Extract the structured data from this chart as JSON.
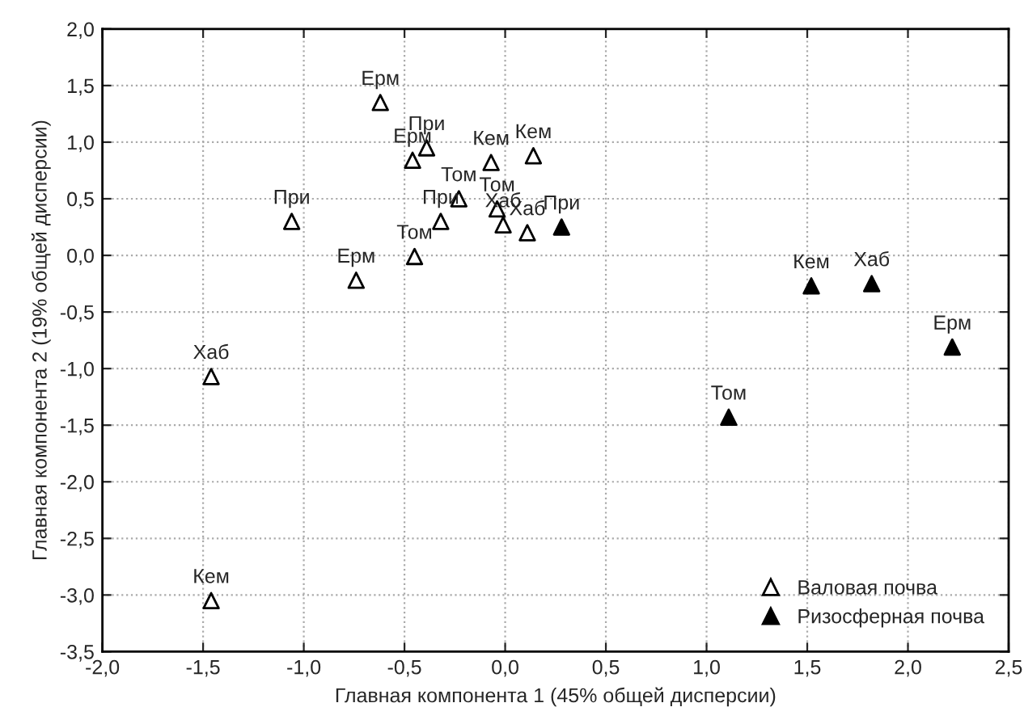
{
  "chart_data": {
    "type": "scatter",
    "xlabel": "Главная компонента 1 (45% общей дисперсии)",
    "ylabel": "Главная компонента 2 (19% общей дисперсии)",
    "xlim": [
      -2.0,
      2.5
    ],
    "ylim": [
      -3.5,
      2.0
    ],
    "xticks": [
      {
        "value": -2.0,
        "label": "-2,0"
      },
      {
        "value": -1.5,
        "label": "-1,5"
      },
      {
        "value": -1.0,
        "label": "-1,0"
      },
      {
        "value": -0.5,
        "label": "-0,5"
      },
      {
        "value": 0.0,
        "label": "0,0"
      },
      {
        "value": 0.5,
        "label": "0,5"
      },
      {
        "value": 1.0,
        "label": "1,0"
      },
      {
        "value": 1.5,
        "label": "1,5"
      },
      {
        "value": 2.0,
        "label": "2,0"
      },
      {
        "value": 2.5,
        "label": "2,5"
      }
    ],
    "yticks": [
      {
        "value": -3.5,
        "label": "-3,5"
      },
      {
        "value": -3.0,
        "label": "-3,0"
      },
      {
        "value": -2.5,
        "label": "-2,5"
      },
      {
        "value": -2.0,
        "label": "-2,0"
      },
      {
        "value": -1.5,
        "label": "-1,5"
      },
      {
        "value": -1.0,
        "label": "-1,0"
      },
      {
        "value": -0.5,
        "label": "-0,5"
      },
      {
        "value": 0.0,
        "label": "0,0"
      },
      {
        "value": 0.5,
        "label": "0,5"
      },
      {
        "value": 1.0,
        "label": "1,0"
      },
      {
        "value": 1.5,
        "label": "1,5"
      },
      {
        "value": 2.0,
        "label": "2,0"
      }
    ],
    "grid": true,
    "legend": "bottom right",
    "marker": "triangle",
    "series": [
      {
        "name": "Валовая почва",
        "color": "#ffffff",
        "x": [
          -0.62,
          -0.39,
          -0.46,
          -0.07,
          0.14,
          -0.23,
          -0.04,
          -0.01,
          0.11,
          -0.32,
          -1.06,
          -0.45,
          -0.74,
          -1.46,
          -1.46
        ],
        "values": [
          1.35,
          0.95,
          0.84,
          0.82,
          0.88,
          0.5,
          0.41,
          0.27,
          0.2,
          0.3,
          0.3,
          -0.01,
          -0.22,
          -1.07,
          -3.05
        ]
      },
      {
        "name": "Ризосферная почва",
        "color": "#000000",
        "x": [
          0.28,
          1.52,
          1.82,
          2.22,
          1.11
        ],
        "values": [
          0.25,
          -0.27,
          -0.25,
          -0.81,
          -1.43
        ]
      }
    ],
    "annotations": [
      {
        "text": "Ерм",
        "x": -0.62,
        "y": 1.35
      },
      {
        "text": "При",
        "x": -0.39,
        "y": 0.95
      },
      {
        "text": "Ерм",
        "x": -0.46,
        "y": 0.84
      },
      {
        "text": "Кем",
        "x": -0.07,
        "y": 0.82
      },
      {
        "text": "Кем",
        "x": 0.14,
        "y": 0.88
      },
      {
        "text": "Том",
        "x": -0.23,
        "y": 0.5
      },
      {
        "text": "Том",
        "x": -0.04,
        "y": 0.41
      },
      {
        "text": "Хаб",
        "x": -0.01,
        "y": 0.27
      },
      {
        "text": "Хаб",
        "x": 0.11,
        "y": 0.2
      },
      {
        "text": "При",
        "x": -0.32,
        "y": 0.3
      },
      {
        "text": "При",
        "x": -1.06,
        "y": 0.3
      },
      {
        "text": "Том",
        "x": -0.45,
        "y": -0.01
      },
      {
        "text": "Ерм",
        "x": -0.74,
        "y": -0.22
      },
      {
        "text": "Хаб",
        "x": -1.46,
        "y": -1.07
      },
      {
        "text": "Кем",
        "x": -1.46,
        "y": -3.05
      },
      {
        "text": "При",
        "x": 0.28,
        "y": 0.25
      },
      {
        "text": "Кем",
        "x": 1.52,
        "y": -0.27
      },
      {
        "text": "Хаб",
        "x": 1.82,
        "y": -0.25
      },
      {
        "text": "Ерм",
        "x": 2.22,
        "y": -0.81
      },
      {
        "text": "Том",
        "x": 1.11,
        "y": -1.43
      }
    ]
  }
}
